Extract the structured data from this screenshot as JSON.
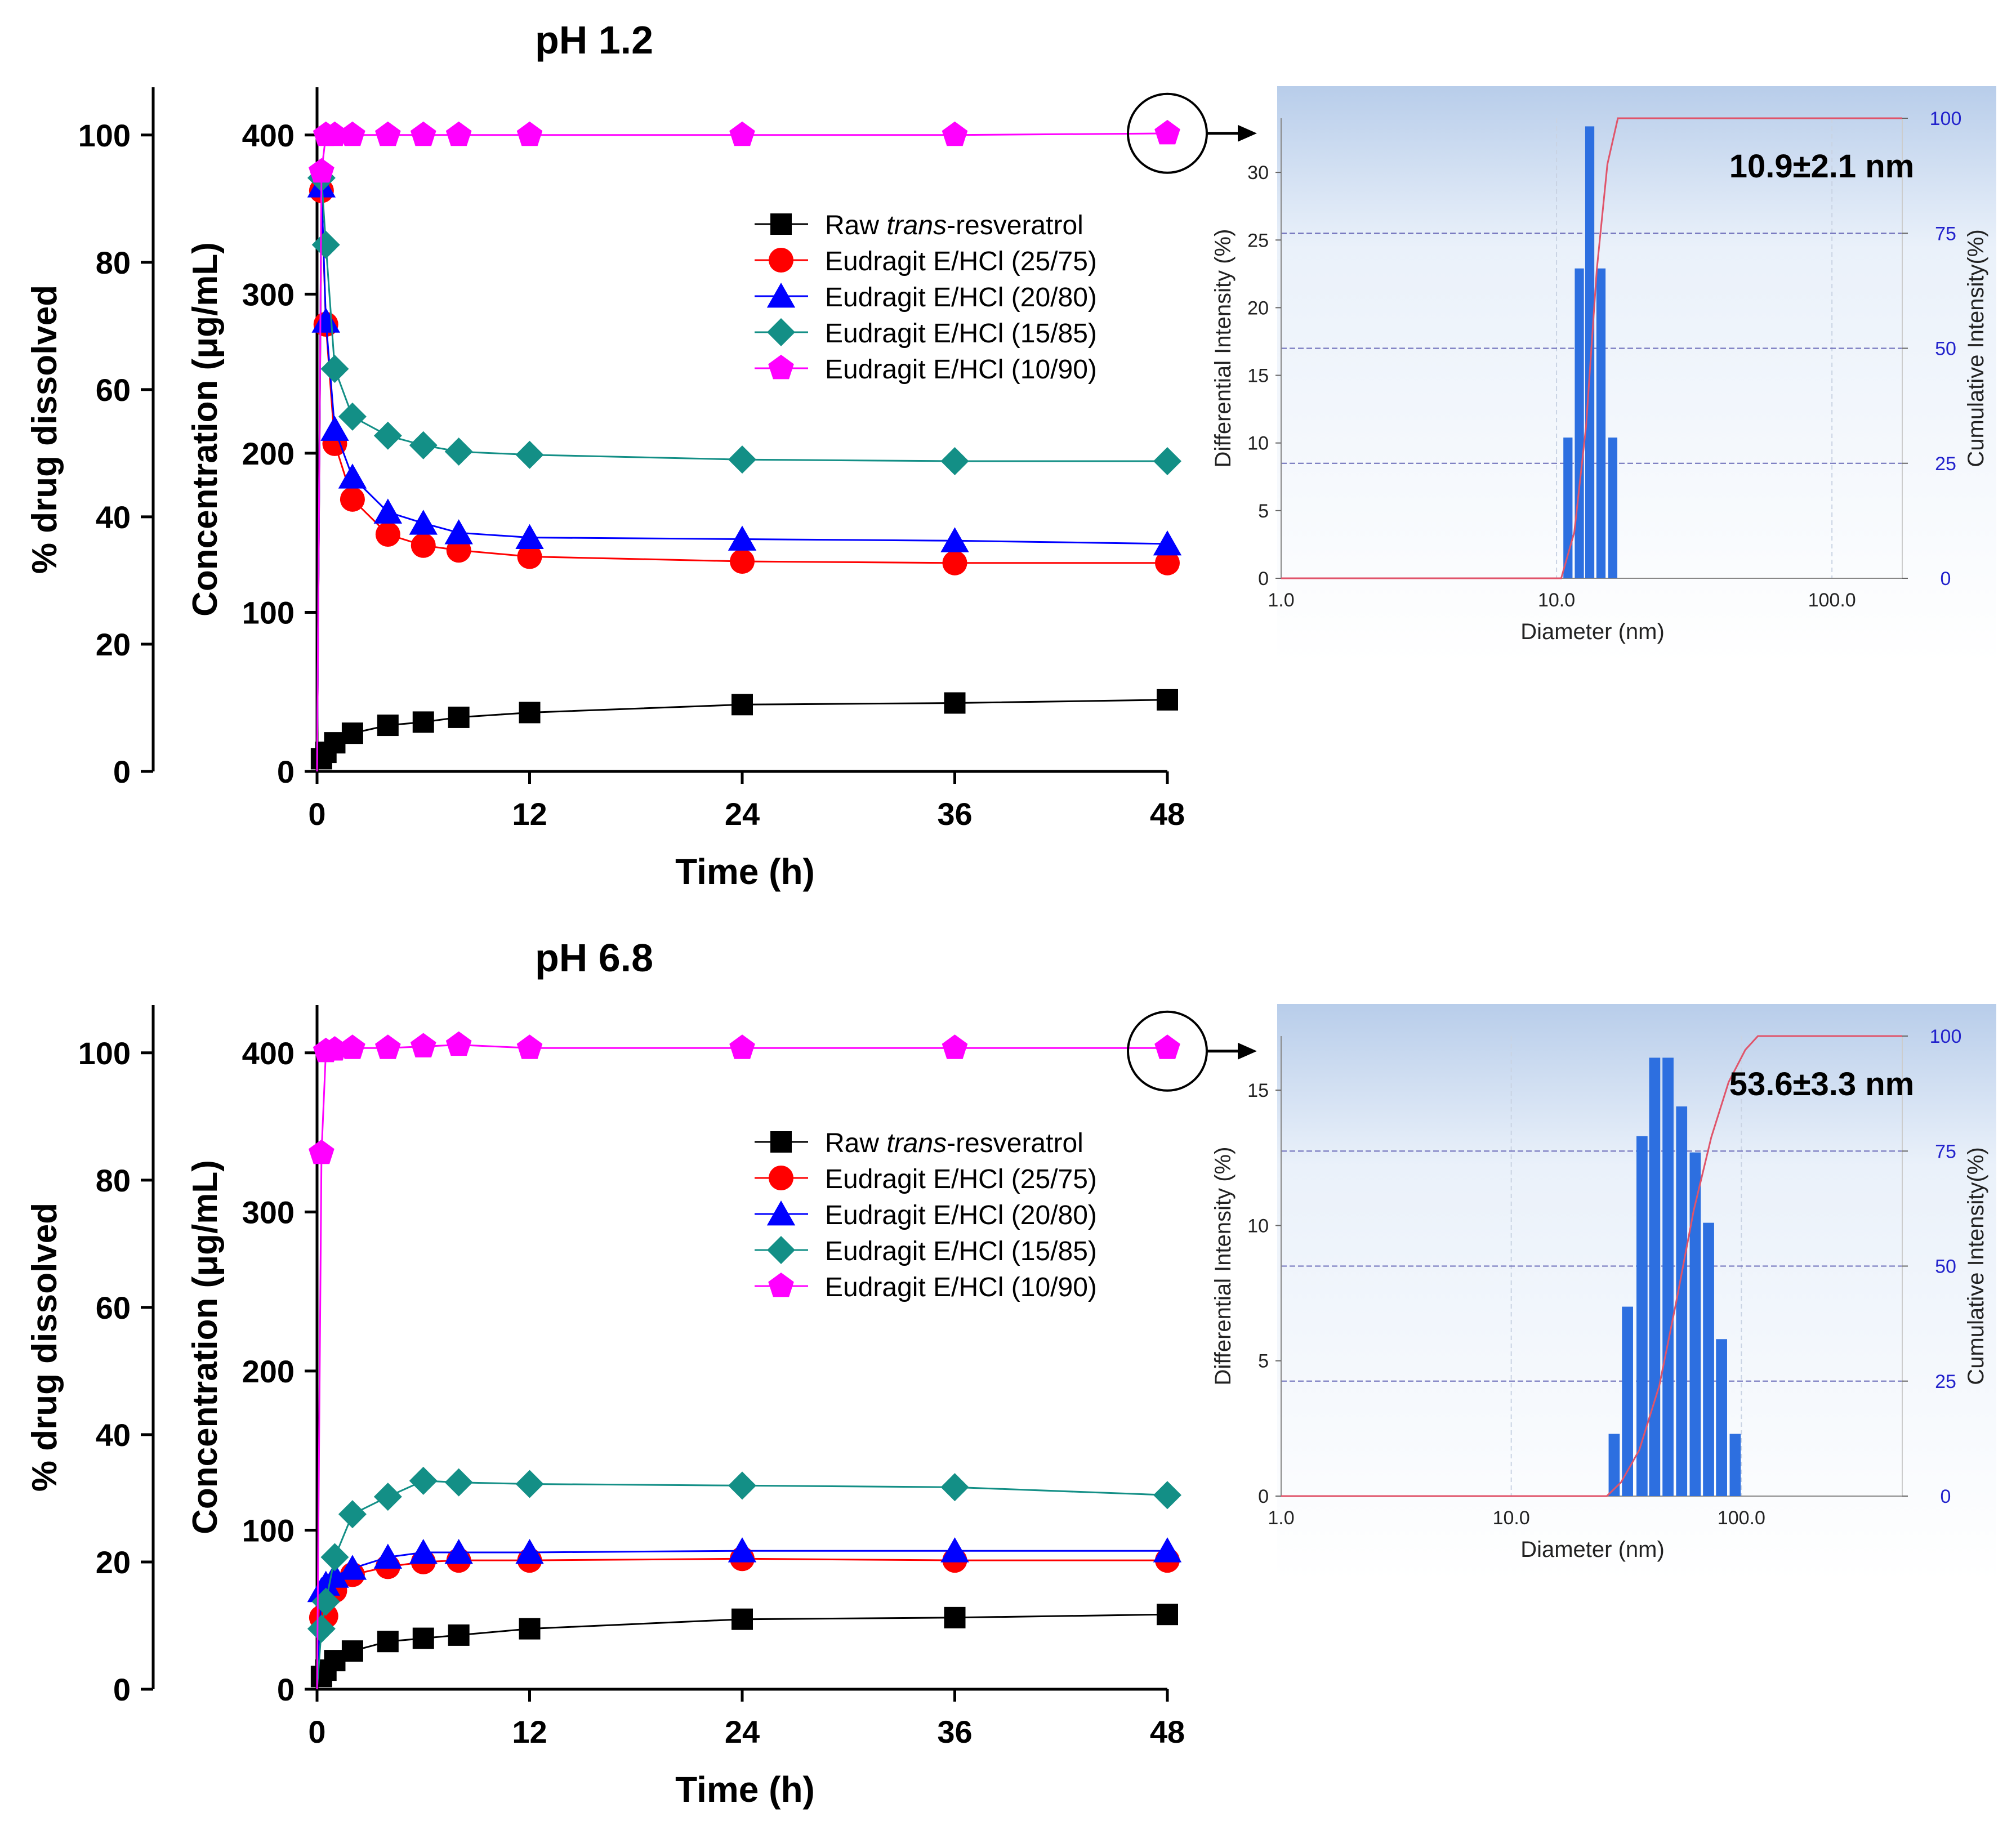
{
  "figures": [
    {
      "title": "pH 1.2",
      "ylabel_left": "% drug dissolved",
      "ylabel_right": "Concentration (μg/mL)",
      "psd_label": "10.9±2.1 nm"
    },
    {
      "title": "pH 6.8",
      "ylabel_left": "% drug dissolved",
      "ylabel_right": "Concentration (μg/mL)",
      "psd_label": "53.6±3.3 nm"
    }
  ],
  "legend": {
    "raw_prefix": "Raw ",
    "raw_italic": "trans",
    "raw_suffix": "-resveratrol",
    "entries": [
      "Eudragit E/HCl (25/75)",
      "Eudragit E/HCl (20/80)",
      "Eudragit E/HCl (15/85)",
      "Eudragit E/HCl (10/90)"
    ]
  },
  "psd_axes": {
    "xlabel": "Diameter (nm)",
    "ylabel_left": "Differential Intensity (%)",
    "ylabel_right": "Cumulative Intensity(%)",
    "x_ticks": [
      "1.0",
      "10.0",
      "100.0"
    ]
  },
  "colors": {
    "raw": "#000000",
    "e2575": "#ff0000",
    "e2080": "#0000ff",
    "e1585": "#138f86",
    "e1090": "#ff00ff",
    "bar": "#2d6fe0",
    "cum_line": "#e0546a",
    "psd_tick_right": "#2222cc"
  },
  "chart_data": [
    {
      "type": "line",
      "title": "pH 1.2",
      "xlabel": "Time (h)",
      "ylabel": "Concentration (μg/mL)",
      "ylabel_secondary": "% drug dissolved",
      "xlim": [
        0,
        48
      ],
      "x_ticks": [
        0,
        12,
        24,
        36,
        48
      ],
      "ylim": [
        0,
        430
      ],
      "y_ticks": [
        0,
        100,
        200,
        300,
        400
      ],
      "y2_ticks": [
        0,
        20,
        40,
        60,
        80,
        100
      ],
      "series": [
        {
          "name": "Raw trans-resveratrol",
          "marker": "square",
          "x": [
            0.25,
            0.5,
            1,
            2,
            4,
            6,
            8,
            12,
            24,
            36,
            48
          ],
          "values": [
            8,
            12,
            18,
            24,
            29,
            31,
            34,
            37,
            42,
            43,
            45
          ]
        },
        {
          "name": "Eudragit E/HCl (25/75)",
          "marker": "circle",
          "x": [
            0.25,
            0.5,
            1,
            2,
            4,
            6,
            8,
            12,
            24,
            36,
            48
          ],
          "values": [
            365,
            281,
            206,
            171,
            149,
            142,
            139,
            135,
            132,
            131,
            131
          ]
        },
        {
          "name": "Eudragit E/HCl (20/80)",
          "marker": "triangle",
          "x": [
            0.25,
            0.5,
            1,
            2,
            4,
            6,
            8,
            12,
            24,
            36,
            48
          ],
          "values": [
            368,
            283,
            215,
            185,
            163,
            156,
            150,
            147,
            146,
            145,
            143
          ]
        },
        {
          "name": "Eudragit E/HCl (15/85)",
          "marker": "diamond",
          "x": [
            0.25,
            0.5,
            1,
            2,
            4,
            6,
            8,
            12,
            24,
            36,
            48
          ],
          "values": [
            373,
            331,
            253,
            223,
            211,
            205,
            201,
            199,
            196,
            195,
            195
          ]
        },
        {
          "name": "Eudragit E/HCl (10/90)",
          "marker": "pentagon",
          "x": [
            0.25,
            0.5,
            1,
            2,
            4,
            6,
            8,
            12,
            24,
            36,
            48
          ],
          "values": [
            377,
            400,
            400,
            400,
            400,
            400,
            400,
            400,
            400,
            400,
            401
          ]
        }
      ]
    },
    {
      "type": "bar",
      "title": "10.9±2.1 nm",
      "xlabel": "Diameter (nm)",
      "ylabel": "Differential Intensity (%)",
      "ylabel_secondary": "Cumulative Intensity(%)",
      "x_scale": "log",
      "xlim": [
        1,
        180
      ],
      "ylim": [
        0,
        34
      ],
      "y_ticks": [
        0,
        5,
        10,
        15,
        20,
        25,
        30
      ],
      "y2_ticks": [
        0,
        25,
        50,
        75,
        100
      ],
      "categories": [
        11.0,
        12.1,
        13.2,
        14.5,
        16.0,
        17.5
      ],
      "values": [
        10.4,
        22.9,
        33.4,
        22.9,
        10.4,
        0
      ],
      "cumulative": {
        "x": [
          1,
          10.4,
          11.6,
          12.8,
          14.0,
          15.3,
          16.7,
          180
        ],
        "values": [
          0,
          0,
          10,
          33,
          67,
          90,
          100,
          100
        ]
      }
    },
    {
      "type": "line",
      "title": "pH 6.8",
      "xlabel": "Time (h)",
      "ylabel": "Concentration (μg/mL)",
      "ylabel_secondary": "% drug dissolved",
      "xlim": [
        0,
        48
      ],
      "x_ticks": [
        0,
        12,
        24,
        36,
        48
      ],
      "ylim": [
        0,
        430
      ],
      "y_ticks": [
        0,
        100,
        200,
        300,
        400
      ],
      "y2_ticks": [
        0,
        20,
        40,
        60,
        80,
        100
      ],
      "series": [
        {
          "name": "Raw trans-resveratrol",
          "marker": "square",
          "x": [
            0.25,
            0.5,
            1,
            2,
            4,
            6,
            8,
            12,
            24,
            36,
            48
          ],
          "values": [
            8,
            12,
            18,
            24,
            30,
            32,
            34,
            38,
            44,
            45,
            47
          ]
        },
        {
          "name": "Eudragit E/HCl (25/75)",
          "marker": "circle",
          "x": [
            0.25,
            0.5,
            1,
            2,
            4,
            6,
            8,
            12,
            24,
            36,
            48
          ],
          "values": [
            45,
            46,
            62,
            72,
            77,
            80,
            81,
            81,
            82,
            81,
            81
          ]
        },
        {
          "name": "Eudragit E/HCl (20/80)",
          "marker": "triangle",
          "x": [
            0.25,
            0.5,
            1,
            2,
            4,
            6,
            8,
            12,
            24,
            36,
            48
          ],
          "values": [
            62,
            66,
            71,
            76,
            83,
            86,
            86,
            86,
            87,
            87,
            87
          ]
        },
        {
          "name": "Eudragit E/HCl (15/85)",
          "marker": "diamond",
          "x": [
            0.25,
            0.5,
            1,
            2,
            4,
            6,
            8,
            12,
            24,
            36,
            48
          ],
          "values": [
            38,
            55,
            83,
            110,
            121,
            131,
            130,
            129,
            128,
            127,
            122
          ]
        },
        {
          "name": "Eudragit E/HCl (10/90)",
          "marker": "pentagon",
          "x": [
            0.25,
            0.5,
            1,
            2,
            4,
            6,
            8,
            12,
            24,
            36,
            48
          ],
          "values": [
            337,
            401,
            402,
            403,
            403,
            404,
            405,
            403,
            403,
            403,
            403
          ]
        }
      ]
    },
    {
      "type": "bar",
      "title": "53.6±3.3 nm",
      "xlabel": "Diameter (nm)",
      "ylabel": "Differential Intensity (%)",
      "ylabel_secondary": "Cumulative Intensity(%)",
      "x_scale": "log",
      "xlim": [
        1,
        500
      ],
      "ylim": [
        0,
        17
      ],
      "y_ticks": [
        0,
        5,
        10,
        15
      ],
      "y2_ticks": [
        0,
        25,
        50,
        75,
        100
      ],
      "categories": [
        28,
        32,
        37,
        42,
        48,
        55,
        63,
        72,
        82,
        94,
        108
      ],
      "values": [
        2.3,
        7.0,
        13.3,
        16.2,
        16.2,
        14.4,
        12.7,
        10.1,
        5.8,
        2.3,
        0
      ],
      "cumulative": {
        "x": [
          1,
          26,
          30,
          36,
          44,
          52,
          62,
          74,
          88,
          104,
          118,
          500
        ],
        "values": [
          0,
          0,
          3,
          10,
          24,
          42,
          62,
          78,
          90,
          97,
          100,
          100
        ]
      }
    }
  ]
}
